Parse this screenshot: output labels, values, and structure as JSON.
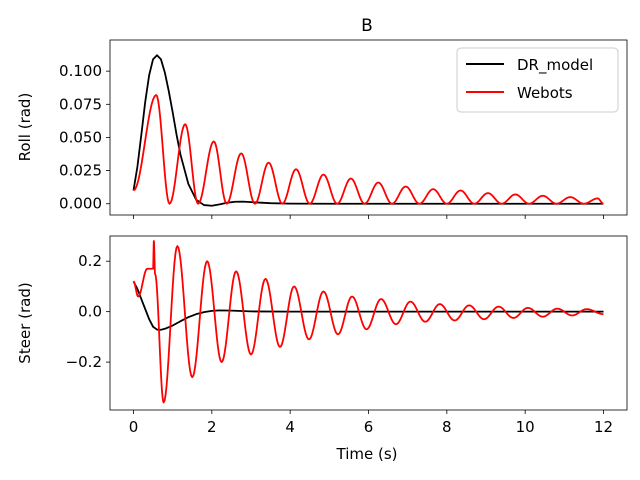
{
  "chart_data": [
    {
      "type": "line",
      "title": "B",
      "xlabel": "",
      "ylabel": "Roll (rad)",
      "xlim": [
        -0.6,
        12.6
      ],
      "ylim": [
        -0.0085,
        0.1235
      ],
      "xticks": [
        0,
        2,
        4,
        6,
        8,
        10,
        12
      ],
      "yticks": [
        0.0,
        0.025,
        0.05,
        0.075,
        0.1
      ],
      "ytick_labels": [
        "0.000",
        "0.025",
        "0.050",
        "0.075",
        "0.100"
      ],
      "legend": {
        "position": "top-right",
        "entries": [
          "DR_model",
          "Webots"
        ]
      },
      "grid": false,
      "series": [
        {
          "name": "DR_model",
          "color": "#000000",
          "x": [
            0,
            0.1,
            0.2,
            0.3,
            0.4,
            0.5,
            0.6,
            0.7,
            0.8,
            0.9,
            1.0,
            1.1,
            1.2,
            1.4,
            1.6,
            1.8,
            2.0,
            2.2,
            2.4,
            2.6,
            2.8,
            3.0,
            3.5,
            4.0,
            5.0,
            6.0,
            8.0,
            10.0,
            12.0
          ],
          "y": [
            0.01,
            0.028,
            0.052,
            0.077,
            0.097,
            0.109,
            0.112,
            0.109,
            0.099,
            0.085,
            0.069,
            0.052,
            0.037,
            0.015,
            0.003,
            -0.001,
            -0.0015,
            -0.0005,
            0.0008,
            0.0015,
            0.0016,
            0.0012,
            0.0004,
            0.0001,
            0.0,
            0.0,
            0.0,
            0.0,
            0.0
          ]
        },
        {
          "name": "Webots",
          "color": "#ff0000",
          "peaks": [
            {
              "x": 0.0,
              "y": 0.01
            },
            {
              "x": 0.58,
              "y": 0.082
            },
            {
              "x": 0.92,
              "y": 0.0
            },
            {
              "x": 1.32,
              "y": 0.06
            },
            {
              "x": 1.65,
              "y": 0.0
            },
            {
              "x": 2.05,
              "y": 0.047
            },
            {
              "x": 2.38,
              "y": 0.0
            },
            {
              "x": 2.75,
              "y": 0.038
            },
            {
              "x": 3.1,
              "y": 0.0
            },
            {
              "x": 3.45,
              "y": 0.031
            },
            {
              "x": 3.8,
              "y": 0.0
            },
            {
              "x": 4.15,
              "y": 0.026
            },
            {
              "x": 4.5,
              "y": 0.0
            },
            {
              "x": 4.85,
              "y": 0.022
            },
            {
              "x": 5.2,
              "y": 0.0
            },
            {
              "x": 5.55,
              "y": 0.019
            },
            {
              "x": 5.9,
              "y": 0.0
            },
            {
              "x": 6.25,
              "y": 0.016
            },
            {
              "x": 6.6,
              "y": 0.0
            },
            {
              "x": 6.95,
              "y": 0.013
            },
            {
              "x": 7.3,
              "y": 0.0
            },
            {
              "x": 7.65,
              "y": 0.011
            },
            {
              "x": 8.0,
              "y": 0.0
            },
            {
              "x": 8.35,
              "y": 0.01
            },
            {
              "x": 8.7,
              "y": 0.0
            },
            {
              "x": 9.05,
              "y": 0.008
            },
            {
              "x": 9.4,
              "y": 0.0
            },
            {
              "x": 9.75,
              "y": 0.007
            },
            {
              "x": 10.1,
              "y": 0.0
            },
            {
              "x": 10.45,
              "y": 0.006
            },
            {
              "x": 10.8,
              "y": 0.0
            },
            {
              "x": 11.15,
              "y": 0.005
            },
            {
              "x": 11.5,
              "y": 0.0
            },
            {
              "x": 11.85,
              "y": 0.004
            },
            {
              "x": 12.0,
              "y": 0.0
            }
          ]
        }
      ]
    },
    {
      "type": "line",
      "title": "",
      "xlabel": "Time (s)",
      "ylabel": "Steer (rad)",
      "xlim": [
        -0.6,
        12.6
      ],
      "ylim": [
        -0.39,
        0.3
      ],
      "xticks": [
        0,
        2,
        4,
        6,
        8,
        10,
        12
      ],
      "yticks": [
        -0.2,
        0.0,
        0.2
      ],
      "ytick_labels": [
        "−0.2",
        "0.0",
        "0.2"
      ],
      "grid": false,
      "series": [
        {
          "name": "DR_model",
          "color": "#000000",
          "x": [
            0,
            0.1,
            0.2,
            0.3,
            0.4,
            0.5,
            0.6,
            0.7,
            0.8,
            1.0,
            1.2,
            1.4,
            1.6,
            1.8,
            2.0,
            2.2,
            2.5,
            3.0,
            4.0,
            6.0,
            8.0,
            10.0,
            12.0
          ],
          "y": [
            0.12,
            0.09,
            0.05,
            0.01,
            -0.03,
            -0.06,
            -0.071,
            -0.072,
            -0.068,
            -0.055,
            -0.038,
            -0.022,
            -0.01,
            -0.002,
            0.003,
            0.005,
            0.004,
            0.001,
            0.0,
            0.0,
            0.0,
            0.0,
            0.0
          ]
        },
        {
          "name": "Webots",
          "color": "#ff0000",
          "peaks": [
            {
              "x": 0.0,
              "y": 0.12
            },
            {
              "x": 0.12,
              "y": 0.06
            },
            {
              "x": 0.35,
              "y": 0.17
            },
            {
              "x": 0.5,
              "y": 0.17
            },
            {
              "x": 0.52,
              "y": 0.28
            },
            {
              "x": 0.55,
              "y": 0.15
            },
            {
              "x": 0.77,
              "y": -0.36
            },
            {
              "x": 1.12,
              "y": 0.26
            },
            {
              "x": 1.5,
              "y": -0.26
            },
            {
              "x": 1.88,
              "y": 0.2
            },
            {
              "x": 2.25,
              "y": -0.2
            },
            {
              "x": 2.62,
              "y": 0.16
            },
            {
              "x": 3.0,
              "y": -0.17
            },
            {
              "x": 3.37,
              "y": 0.13
            },
            {
              "x": 3.74,
              "y": -0.14
            },
            {
              "x": 4.1,
              "y": 0.1
            },
            {
              "x": 4.48,
              "y": -0.11
            },
            {
              "x": 4.85,
              "y": 0.08
            },
            {
              "x": 5.22,
              "y": -0.09
            },
            {
              "x": 5.58,
              "y": 0.06
            },
            {
              "x": 5.95,
              "y": -0.07
            },
            {
              "x": 6.32,
              "y": 0.05
            },
            {
              "x": 6.7,
              "y": -0.05
            },
            {
              "x": 7.07,
              "y": 0.04
            },
            {
              "x": 7.45,
              "y": -0.04
            },
            {
              "x": 7.82,
              "y": 0.03
            },
            {
              "x": 8.2,
              "y": -0.035
            },
            {
              "x": 8.57,
              "y": 0.025
            },
            {
              "x": 8.95,
              "y": -0.03
            },
            {
              "x": 9.32,
              "y": 0.02
            },
            {
              "x": 9.7,
              "y": -0.025
            },
            {
              "x": 10.07,
              "y": 0.015
            },
            {
              "x": 10.45,
              "y": -0.02
            },
            {
              "x": 10.82,
              "y": 0.012
            },
            {
              "x": 11.2,
              "y": -0.015
            },
            {
              "x": 11.57,
              "y": 0.01
            },
            {
              "x": 12.0,
              "y": -0.01
            }
          ]
        }
      ]
    }
  ]
}
